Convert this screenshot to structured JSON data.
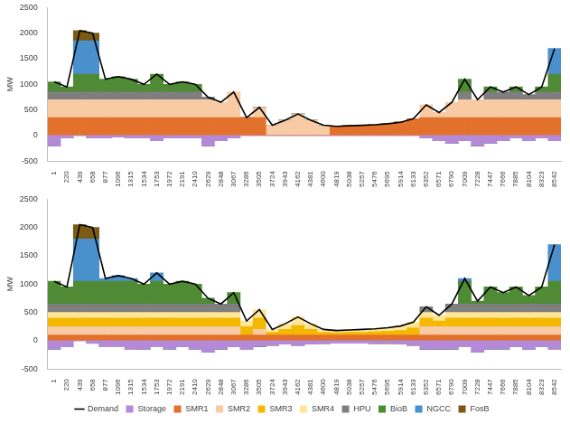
{
  "chart_data": [
    {
      "type": "bar",
      "stacked": true,
      "grid": false,
      "y_label": "MW",
      "ylim": [
        -500,
        2500
      ],
      "yticks": [
        -500,
        0,
        500,
        1000,
        1500,
        2000,
        2500
      ],
      "categories": [
        "1",
        "220",
        "439",
        "658",
        "877",
        "1096",
        "1315",
        "1534",
        "1753",
        "1972",
        "2191",
        "2410",
        "2629",
        "2848",
        "3067",
        "3286",
        "3505",
        "3724",
        "3943",
        "4162",
        "4381",
        "4600",
        "4819",
        "5038",
        "5257",
        "5476",
        "5695",
        "5914",
        "6133",
        "6352",
        "6571",
        "6790",
        "7009",
        "7228",
        "7447",
        "7666",
        "7885",
        "8104",
        "8323",
        "8542"
      ],
      "series": [
        {
          "name": "Storage",
          "color": "#b48ad8",
          "values": [
            -200,
            -50,
            0,
            -50,
            -50,
            -30,
            -50,
            -50,
            -100,
            -50,
            -50,
            -50,
            -200,
            -100,
            -50,
            0,
            0,
            0,
            0,
            0,
            0,
            0,
            0,
            0,
            0,
            0,
            0,
            0,
            0,
            -50,
            -100,
            -150,
            -100,
            -200,
            -150,
            -100,
            -50,
            -100,
            -50,
            -100
          ]
        },
        {
          "name": "SMR1",
          "color": "#e2712b",
          "values": [
            350,
            350,
            350,
            350,
            350,
            350,
            350,
            350,
            350,
            350,
            350,
            350,
            350,
            350,
            350,
            350,
            350,
            0,
            0,
            0,
            0,
            0,
            180,
            190,
            200,
            210,
            230,
            260,
            330,
            350,
            350,
            350,
            350,
            350,
            350,
            350,
            350,
            350,
            350,
            350
          ]
        },
        {
          "name": "SMR2",
          "color": "#f8cba4",
          "values": [
            350,
            350,
            350,
            350,
            350,
            350,
            350,
            350,
            350,
            350,
            350,
            350,
            350,
            300,
            500,
            0,
            200,
            200,
            300,
            420,
            300,
            200,
            0,
            0,
            0,
            0,
            0,
            0,
            0,
            250,
            100,
            300,
            350,
            350,
            350,
            350,
            350,
            350,
            350,
            350
          ]
        },
        {
          "name": "HPU",
          "color": "#7f7f7f",
          "values": [
            150,
            150,
            150,
            150,
            150,
            150,
            150,
            150,
            150,
            150,
            150,
            150,
            50,
            0,
            0,
            0,
            0,
            0,
            0,
            0,
            0,
            0,
            0,
            0,
            0,
            0,
            0,
            0,
            0,
            0,
            0,
            0,
            150,
            0,
            150,
            150,
            150,
            100,
            150,
            150
          ]
        },
        {
          "name": "BioB",
          "color": "#4f8a35",
          "values": [
            200,
            100,
            350,
            350,
            250,
            300,
            250,
            150,
            350,
            150,
            200,
            150,
            0,
            0,
            0,
            0,
            0,
            0,
            0,
            0,
            0,
            0,
            0,
            0,
            0,
            0,
            0,
            0,
            0,
            0,
            0,
            0,
            250,
            0,
            100,
            0,
            100,
            0,
            100,
            350
          ]
        },
        {
          "name": "NGCC",
          "color": "#4a90cc",
          "values": [
            0,
            0,
            650,
            650,
            0,
            0,
            0,
            0,
            0,
            0,
            0,
            0,
            0,
            0,
            0,
            0,
            0,
            0,
            0,
            0,
            0,
            0,
            0,
            0,
            0,
            0,
            0,
            0,
            0,
            0,
            0,
            0,
            0,
            0,
            0,
            0,
            0,
            0,
            0,
            500
          ]
        },
        {
          "name": "FosB",
          "color": "#7b5a12",
          "values": [
            0,
            0,
            200,
            150,
            0,
            0,
            0,
            0,
            0,
            0,
            0,
            0,
            0,
            0,
            0,
            0,
            0,
            0,
            0,
            0,
            0,
            0,
            0,
            0,
            0,
            0,
            0,
            0,
            0,
            0,
            0,
            0,
            0,
            0,
            0,
            0,
            0,
            0,
            0,
            0
          ]
        },
        {
          "name": "Demand",
          "type": "line",
          "color": "#000000",
          "values": [
            1050,
            950,
            2050,
            2000,
            1100,
            1150,
            1100,
            1000,
            1200,
            1000,
            1050,
            1000,
            750,
            650,
            850,
            350,
            550,
            200,
            300,
            420,
            300,
            200,
            180,
            190,
            200,
            210,
            230,
            260,
            330,
            600,
            450,
            650,
            1100,
            700,
            950,
            850,
            950,
            800,
            950,
            1700
          ]
        }
      ]
    },
    {
      "type": "bar",
      "stacked": true,
      "grid": false,
      "y_label": "MW",
      "legend": "bottom",
      "ylim": [
        -500,
        2500
      ],
      "yticks": [
        -500,
        0,
        500,
        1000,
        1500,
        2000,
        2500
      ],
      "categories": [
        "1",
        "220",
        "439",
        "658",
        "877",
        "1096",
        "1315",
        "1534",
        "1753",
        "1972",
        "2191",
        "2410",
        "2629",
        "2848",
        "3067",
        "3286",
        "3505",
        "3724",
        "3943",
        "4162",
        "4381",
        "4600",
        "4819",
        "5038",
        "5257",
        "5476",
        "5695",
        "5914",
        "6133",
        "6352",
        "6571",
        "6790",
        "7009",
        "7228",
        "7447",
        "7666",
        "7885",
        "8104",
        "8323",
        "8542"
      ],
      "series": [
        {
          "name": "Storage",
          "color": "#b48ad8",
          "values": [
            -150,
            -100,
            0,
            -50,
            -100,
            -100,
            -150,
            -150,
            -100,
            -150,
            -100,
            -150,
            -200,
            -150,
            -100,
            -150,
            -100,
            -80,
            -60,
            -80,
            -60,
            -50,
            -40,
            -40,
            -40,
            -50,
            -50,
            -60,
            -80,
            -150,
            -150,
            -150,
            -100,
            -200,
            -150,
            -150,
            -100,
            -150,
            -100,
            -150
          ]
        },
        {
          "name": "SMR1",
          "color": "#e2712b",
          "values": [
            100,
            100,
            100,
            100,
            100,
            100,
            100,
            100,
            100,
            100,
            100,
            100,
            100,
            100,
            100,
            100,
            100,
            100,
            100,
            100,
            100,
            100,
            100,
            100,
            100,
            100,
            100,
            100,
            100,
            100,
            100,
            100,
            100,
            100,
            100,
            100,
            100,
            100,
            100,
            100
          ]
        },
        {
          "name": "SMR2",
          "color": "#f8cba4",
          "values": [
            150,
            150,
            150,
            150,
            150,
            150,
            150,
            150,
            150,
            150,
            150,
            150,
            150,
            150,
            150,
            0,
            100,
            0,
            0,
            0,
            0,
            0,
            0,
            0,
            0,
            0,
            0,
            0,
            0,
            150,
            150,
            150,
            150,
            150,
            150,
            150,
            150,
            150,
            150,
            150
          ]
        },
        {
          "name": "SMR3",
          "color": "#f5b800",
          "values": [
            150,
            150,
            150,
            150,
            150,
            150,
            150,
            150,
            150,
            150,
            150,
            150,
            150,
            150,
            150,
            150,
            200,
            50,
            100,
            170,
            100,
            50,
            40,
            50,
            50,
            60,
            70,
            80,
            130,
            150,
            100,
            150,
            150,
            150,
            150,
            150,
            150,
            150,
            150,
            150
          ]
        },
        {
          "name": "SMR4",
          "color": "#ffe699",
          "values": [
            100,
            100,
            100,
            100,
            100,
            100,
            100,
            100,
            100,
            100,
            100,
            100,
            100,
            100,
            100,
            100,
            150,
            50,
            100,
            150,
            100,
            50,
            40,
            40,
            50,
            50,
            60,
            80,
            100,
            100,
            100,
            100,
            100,
            100,
            100,
            100,
            100,
            100,
            100,
            100
          ]
        },
        {
          "name": "HPU",
          "color": "#7f7f7f",
          "values": [
            150,
            150,
            150,
            150,
            150,
            150,
            150,
            150,
            150,
            150,
            150,
            150,
            150,
            150,
            150,
            0,
            0,
            0,
            0,
            0,
            0,
            0,
            0,
            0,
            0,
            0,
            0,
            0,
            0,
            100,
            0,
            150,
            150,
            150,
            150,
            150,
            150,
            150,
            150,
            150
          ]
        },
        {
          "name": "BioB",
          "color": "#4f8a35",
          "values": [
            400,
            300,
            400,
            400,
            400,
            400,
            400,
            350,
            400,
            350,
            400,
            350,
            100,
            0,
            200,
            0,
            0,
            0,
            0,
            0,
            0,
            0,
            0,
            0,
            0,
            0,
            0,
            0,
            0,
            0,
            0,
            0,
            400,
            50,
            300,
            200,
            300,
            150,
            300,
            400
          ]
        },
        {
          "name": "NGCC",
          "color": "#4a90cc",
          "values": [
            0,
            0,
            750,
            750,
            50,
            100,
            50,
            0,
            150,
            0,
            0,
            0,
            0,
            0,
            0,
            0,
            0,
            0,
            0,
            0,
            0,
            0,
            0,
            0,
            0,
            0,
            0,
            0,
            0,
            0,
            0,
            0,
            50,
            0,
            0,
            0,
            0,
            0,
            0,
            650
          ]
        },
        {
          "name": "FosB",
          "color": "#7b5a12",
          "values": [
            0,
            0,
            250,
            200,
            0,
            0,
            0,
            0,
            0,
            0,
            0,
            0,
            0,
            0,
            0,
            0,
            0,
            0,
            0,
            0,
            0,
            0,
            0,
            0,
            0,
            0,
            0,
            0,
            0,
            0,
            0,
            0,
            0,
            0,
            0,
            0,
            0,
            0,
            0,
            0
          ]
        },
        {
          "name": "Demand",
          "type": "line",
          "color": "#000000",
          "values": [
            1050,
            950,
            2050,
            2000,
            1100,
            1150,
            1100,
            1000,
            1200,
            1000,
            1050,
            1000,
            750,
            650,
            850,
            350,
            550,
            200,
            300,
            420,
            300,
            200,
            180,
            190,
            200,
            210,
            230,
            260,
            330,
            600,
            450,
            650,
            1100,
            700,
            950,
            850,
            950,
            800,
            950,
            1700
          ]
        }
      ]
    }
  ]
}
